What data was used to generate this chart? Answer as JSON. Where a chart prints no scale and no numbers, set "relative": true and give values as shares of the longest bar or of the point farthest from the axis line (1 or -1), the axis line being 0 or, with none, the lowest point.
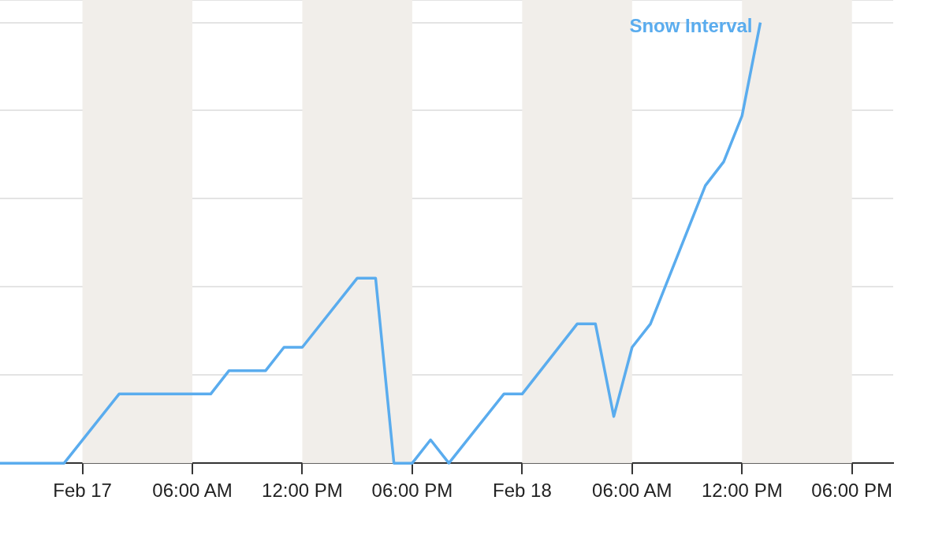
{
  "chart_data": {
    "type": "line",
    "relative": true,
    "grid": "y",
    "legend": false,
    "marker": "none",
    "line_style": "solid",
    "xlim": [
      "--02-16T19:30",
      "--02-18T20:15"
    ],
    "xticks": [
      {
        "value": "--02-17T00:00",
        "label": "Feb 17"
      },
      {
        "value": "--02-17T06:00",
        "label": "06:00 AM"
      },
      {
        "value": "--02-17T12:00",
        "label": "12:00 PM"
      },
      {
        "value": "--02-17T18:00",
        "label": "06:00 PM"
      },
      {
        "value": "--02-18T00:00",
        "label": "Feb 18"
      },
      {
        "value": "--02-18T06:00",
        "label": "06:00 AM"
      },
      {
        "value": "--02-18T12:00",
        "label": "12:00 PM"
      },
      {
        "value": "--02-18T18:00",
        "label": "06:00 PM"
      }
    ],
    "bands": [
      {
        "axis": "x",
        "from": "--02-17T00:00",
        "to": "--02-17T06:00",
        "color": "#f1eeea"
      },
      {
        "axis": "x",
        "from": "--02-17T12:00",
        "to": "--02-17T18:00",
        "color": "#f1eeea"
      },
      {
        "axis": "x",
        "from": "--02-18T00:00",
        "to": "--02-18T06:00",
        "color": "#f1eeea"
      },
      {
        "axis": "x",
        "from": "--02-18T12:00",
        "to": "--02-18T18:00",
        "color": "#f1eeea"
      }
    ],
    "series": [
      {
        "name": "Snow Interval",
        "color": "#5aacee",
        "x": [
          "--02-16T19:30",
          "--02-16T23:00",
          "--02-17T02:00",
          "--02-17T07:00",
          "--02-17T08:00",
          "--02-17T10:00",
          "--02-17T11:00",
          "--02-17T12:00",
          "--02-17T15:00",
          "--02-17T16:00",
          "--02-17T17:00",
          "--02-17T18:00",
          "--02-17T19:00",
          "--02-17T20:00",
          "--02-17T23:00",
          "--02-18T00:00",
          "--02-18T03:00",
          "--02-18T04:00",
          "--02-18T05:00",
          "--02-18T06:00",
          "--02-18T07:00",
          "--02-18T10:00",
          "--02-18T11:00",
          "--02-18T12:00",
          "--02-18T13:00"
        ],
        "values": [
          0,
          0,
          0.157,
          0.157,
          0.21,
          0.21,
          0.263,
          0.263,
          0.42,
          0.42,
          0,
          0,
          0.053,
          0,
          0.157,
          0.157,
          0.316,
          0.316,
          0.106,
          0.263,
          0.316,
          0.63,
          0.684,
          0.788,
          1
        ]
      }
    ]
  }
}
